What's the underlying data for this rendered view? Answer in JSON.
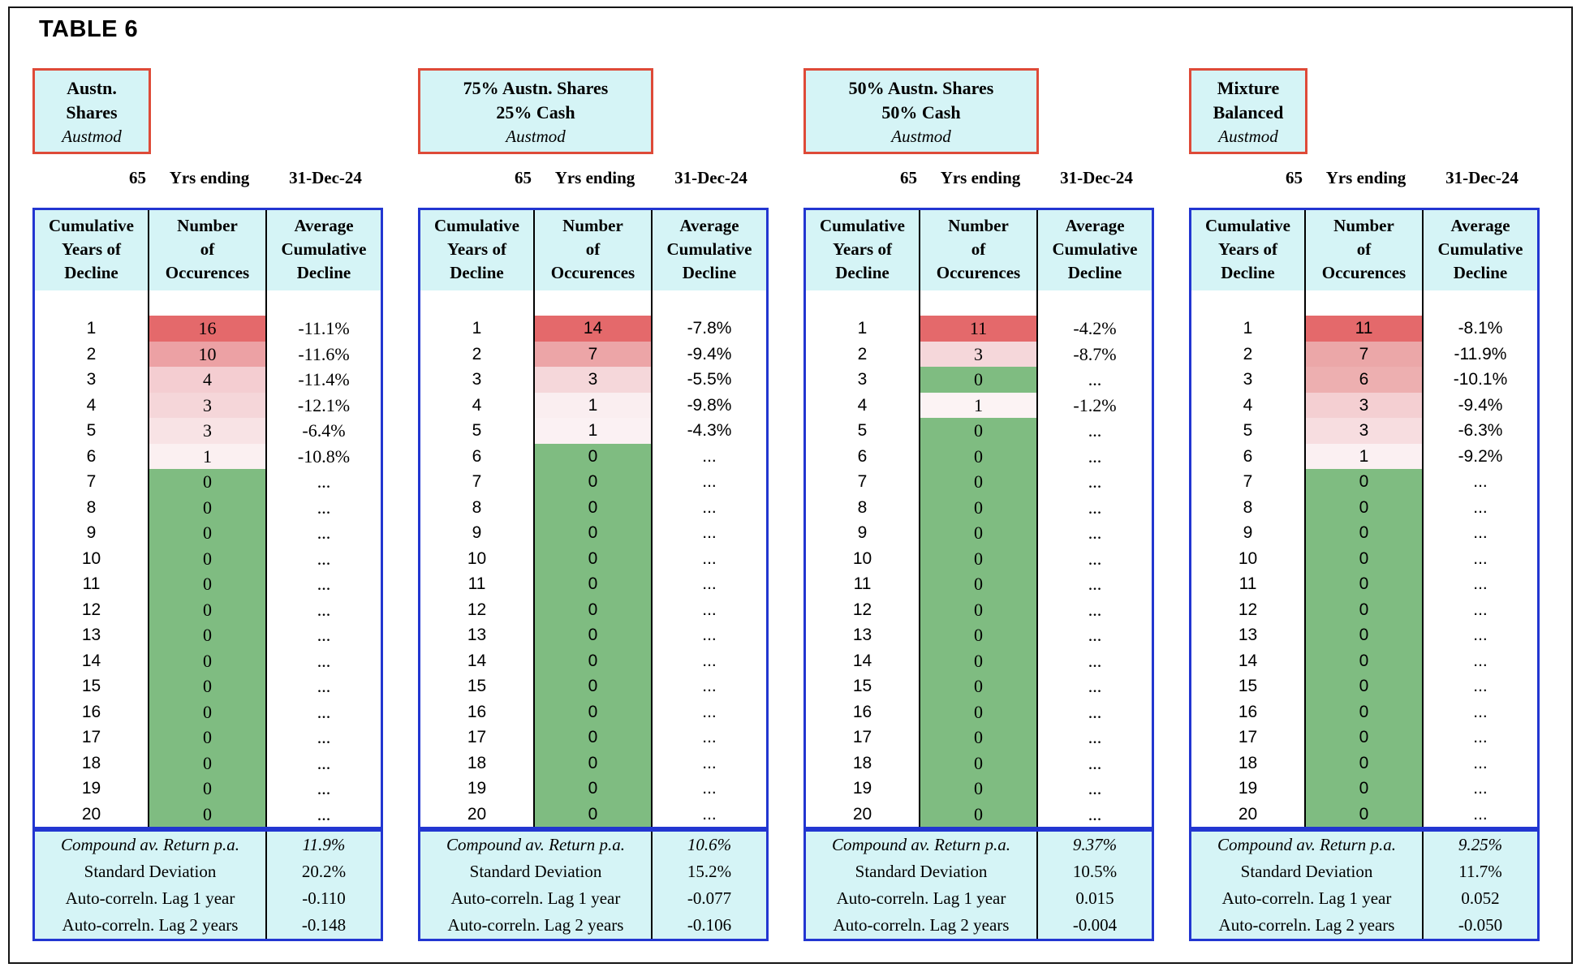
{
  "title": "TABLE 6",
  "subheader": {
    "years": "65",
    "label": "Yrs ending",
    "date": "31-Dec-24"
  },
  "columns": [
    {
      "lines": [
        "Cumulative",
        "Years of",
        "Decline"
      ]
    },
    {
      "lines": [
        "Number",
        "of",
        "Occurences"
      ]
    },
    {
      "lines": [
        "Average",
        "Cumulative",
        "Decline"
      ]
    }
  ],
  "footer_labels": [
    "Compound av. Return p.a.",
    "Standard Deviation",
    "Auto-correln. Lag 1 year",
    "Auto-correln. Lag 2 years"
  ],
  "colors": {
    "header_fill": "#d5f4f6",
    "box_border": "#de4a38",
    "table_border": "#2236d1",
    "zero_fill": "#7fbc81",
    "max_fill": "#e4696b"
  },
  "panels": [
    {
      "box": {
        "line1": "Austn.",
        "line2": "Shares",
        "model": "Austmod"
      },
      "rows": [
        {
          "year": 1,
          "count": 16,
          "decline": "-11.1%",
          "color": "#e4696b"
        },
        {
          "year": 2,
          "count": 10,
          "decline": "-11.6%",
          "color": "#eca1a4"
        },
        {
          "year": 3,
          "count": 4,
          "decline": "-11.4%",
          "color": "#f4cdd1"
        },
        {
          "year": 4,
          "count": 3,
          "decline": "-12.1%",
          "color": "#f5d6d9"
        },
        {
          "year": 5,
          "count": 3,
          "decline": "-6.4%",
          "color": "#f8e3e5"
        },
        {
          "year": 6,
          "count": 1,
          "decline": "-10.8%",
          "color": "#fbf0f1"
        },
        {
          "year": 7,
          "count": 0,
          "decline": "...",
          "color": "#7fbc81"
        },
        {
          "year": 8,
          "count": 0,
          "decline": "...",
          "color": "#7fbc81"
        },
        {
          "year": 9,
          "count": 0,
          "decline": "...",
          "color": "#7fbc81"
        },
        {
          "year": 10,
          "count": 0,
          "decline": "...",
          "color": "#7fbc81"
        },
        {
          "year": 11,
          "count": 0,
          "decline": "...",
          "color": "#7fbc81"
        },
        {
          "year": 12,
          "count": 0,
          "decline": "...",
          "color": "#7fbc81"
        },
        {
          "year": 13,
          "count": 0,
          "decline": "...",
          "color": "#7fbc81"
        },
        {
          "year": 14,
          "count": 0,
          "decline": "...",
          "color": "#7fbc81"
        },
        {
          "year": 15,
          "count": 0,
          "decline": "...",
          "color": "#7fbc81"
        },
        {
          "year": 16,
          "count": 0,
          "decline": "...",
          "color": "#7fbc81"
        },
        {
          "year": 17,
          "count": 0,
          "decline": "...",
          "color": "#7fbc81"
        },
        {
          "year": 18,
          "count": 0,
          "decline": "...",
          "color": "#7fbc81"
        },
        {
          "year": 19,
          "count": 0,
          "decline": "...",
          "color": "#7fbc81"
        },
        {
          "year": 20,
          "count": 0,
          "decline": "...",
          "color": "#7fbc81"
        }
      ],
      "stats": [
        "11.9%",
        "20.2%",
        "-0.110",
        "-0.148"
      ]
    },
    {
      "box": {
        "line1": "75% Austn. Shares",
        "line2": "25% Cash",
        "model": "Austmod"
      },
      "rows": [
        {
          "year": 1,
          "count": 14,
          "decline": "-7.8%",
          "color": "#e4696b"
        },
        {
          "year": 2,
          "count": 7,
          "decline": "-9.4%",
          "color": "#eca5a7"
        },
        {
          "year": 3,
          "count": 3,
          "decline": "-5.5%",
          "color": "#f5d7da"
        },
        {
          "year": 4,
          "count": 1,
          "decline": "-9.8%",
          "color": "#faeef0"
        },
        {
          "year": 5,
          "count": 1,
          "decline": "-4.3%",
          "color": "#fbf1f3"
        },
        {
          "year": 6,
          "count": 0,
          "decline": "...",
          "color": "#7fbc81"
        },
        {
          "year": 7,
          "count": 0,
          "decline": "...",
          "color": "#7fbc81"
        },
        {
          "year": 8,
          "count": 0,
          "decline": "...",
          "color": "#7fbc81"
        },
        {
          "year": 9,
          "count": 0,
          "decline": "...",
          "color": "#7fbc81"
        },
        {
          "year": 10,
          "count": 0,
          "decline": "...",
          "color": "#7fbc81"
        },
        {
          "year": 11,
          "count": 0,
          "decline": "...",
          "color": "#7fbc81"
        },
        {
          "year": 12,
          "count": 0,
          "decline": "...",
          "color": "#7fbc81"
        },
        {
          "year": 13,
          "count": 0,
          "decline": "...",
          "color": "#7fbc81"
        },
        {
          "year": 14,
          "count": 0,
          "decline": "...",
          "color": "#7fbc81"
        },
        {
          "year": 15,
          "count": 0,
          "decline": "...",
          "color": "#7fbc81"
        },
        {
          "year": 16,
          "count": 0,
          "decline": "...",
          "color": "#7fbc81"
        },
        {
          "year": 17,
          "count": 0,
          "decline": "...",
          "color": "#7fbc81"
        },
        {
          "year": 18,
          "count": 0,
          "decline": "...",
          "color": "#7fbc81"
        },
        {
          "year": 19,
          "count": 0,
          "decline": "...",
          "color": "#7fbc81"
        },
        {
          "year": 20,
          "count": 0,
          "decline": "...",
          "color": "#7fbc81"
        }
      ],
      "stats": [
        "10.6%",
        "15.2%",
        "-0.077",
        "-0.106"
      ]
    },
    {
      "box": {
        "line1": "50% Austn. Shares",
        "line2": "50% Cash",
        "model": "Austmod"
      },
      "rows": [
        {
          "year": 1,
          "count": 11,
          "decline": "-4.2%",
          "color": "#e4696b"
        },
        {
          "year": 2,
          "count": 3,
          "decline": "-8.7%",
          "color": "#f5d7da"
        },
        {
          "year": 3,
          "count": 0,
          "decline": "...",
          "color": "#7fbc81"
        },
        {
          "year": 4,
          "count": 1,
          "decline": "-1.2%",
          "color": "#fcf3f4"
        },
        {
          "year": 5,
          "count": 0,
          "decline": "...",
          "color": "#7fbc81"
        },
        {
          "year": 6,
          "count": 0,
          "decline": "...",
          "color": "#7fbc81"
        },
        {
          "year": 7,
          "count": 0,
          "decline": "...",
          "color": "#7fbc81"
        },
        {
          "year": 8,
          "count": 0,
          "decline": "...",
          "color": "#7fbc81"
        },
        {
          "year": 9,
          "count": 0,
          "decline": "...",
          "color": "#7fbc81"
        },
        {
          "year": 10,
          "count": 0,
          "decline": "...",
          "color": "#7fbc81"
        },
        {
          "year": 11,
          "count": 0,
          "decline": "...",
          "color": "#7fbc81"
        },
        {
          "year": 12,
          "count": 0,
          "decline": "...",
          "color": "#7fbc81"
        },
        {
          "year": 13,
          "count": 0,
          "decline": "...",
          "color": "#7fbc81"
        },
        {
          "year": 14,
          "count": 0,
          "decline": "...",
          "color": "#7fbc81"
        },
        {
          "year": 15,
          "count": 0,
          "decline": "...",
          "color": "#7fbc81"
        },
        {
          "year": 16,
          "count": 0,
          "decline": "...",
          "color": "#7fbc81"
        },
        {
          "year": 17,
          "count": 0,
          "decline": "...",
          "color": "#7fbc81"
        },
        {
          "year": 18,
          "count": 0,
          "decline": "...",
          "color": "#7fbc81"
        },
        {
          "year": 19,
          "count": 0,
          "decline": "...",
          "color": "#7fbc81"
        },
        {
          "year": 20,
          "count": 0,
          "decline": "...",
          "color": "#7fbc81"
        }
      ],
      "stats": [
        "9.37%",
        "10.5%",
        "0.015",
        "-0.004"
      ]
    },
    {
      "box": {
        "line1": "Mixture",
        "line2": "Balanced",
        "model": "Austmod"
      },
      "rows": [
        {
          "year": 1,
          "count": 11,
          "decline": "-8.1%",
          "color": "#e4696b"
        },
        {
          "year": 2,
          "count": 7,
          "decline": "-11.9%",
          "color": "#eba7a8"
        },
        {
          "year": 3,
          "count": 6,
          "decline": "-10.1%",
          "color": "#edafb0"
        },
        {
          "year": 4,
          "count": 3,
          "decline": "-9.4%",
          "color": "#f4cfd2"
        },
        {
          "year": 5,
          "count": 3,
          "decline": "-6.3%",
          "color": "#f7dde0"
        },
        {
          "year": 6,
          "count": 1,
          "decline": "-9.2%",
          "color": "#fbf0f2"
        },
        {
          "year": 7,
          "count": 0,
          "decline": "...",
          "color": "#7fbc81"
        },
        {
          "year": 8,
          "count": 0,
          "decline": "...",
          "color": "#7fbc81"
        },
        {
          "year": 9,
          "count": 0,
          "decline": "...",
          "color": "#7fbc81"
        },
        {
          "year": 10,
          "count": 0,
          "decline": "...",
          "color": "#7fbc81"
        },
        {
          "year": 11,
          "count": 0,
          "decline": "...",
          "color": "#7fbc81"
        },
        {
          "year": 12,
          "count": 0,
          "decline": "...",
          "color": "#7fbc81"
        },
        {
          "year": 13,
          "count": 0,
          "decline": "...",
          "color": "#7fbc81"
        },
        {
          "year": 14,
          "count": 0,
          "decline": "...",
          "color": "#7fbc81"
        },
        {
          "year": 15,
          "count": 0,
          "decline": "...",
          "color": "#7fbc81"
        },
        {
          "year": 16,
          "count": 0,
          "decline": "...",
          "color": "#7fbc81"
        },
        {
          "year": 17,
          "count": 0,
          "decline": "...",
          "color": "#7fbc81"
        },
        {
          "year": 18,
          "count": 0,
          "decline": "...",
          "color": "#7fbc81"
        },
        {
          "year": 19,
          "count": 0,
          "decline": "...",
          "color": "#7fbc81"
        },
        {
          "year": 20,
          "count": 0,
          "decline": "...",
          "color": "#7fbc81"
        }
      ],
      "stats": [
        "9.25%",
        "11.7%",
        "0.052",
        "-0.050"
      ]
    }
  ]
}
